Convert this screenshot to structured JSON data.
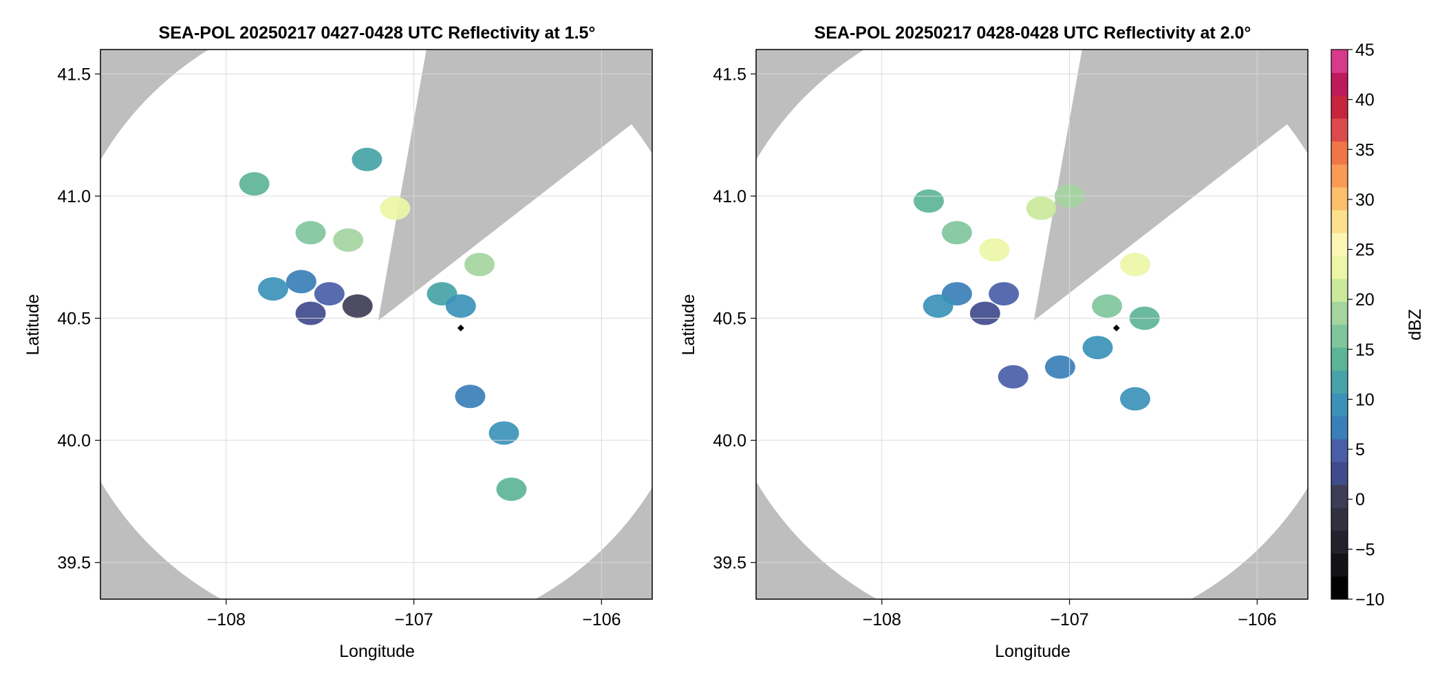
{
  "chart_data": [
    {
      "type": "heatmap",
      "title": "SEA-POL 20250217 0427-0428 UTC Reflectivity at 1.5°",
      "xlabel": "Longitude",
      "ylabel": "Latitude",
      "xlim": [
        -108.67,
        -105.73
      ],
      "ylim": [
        39.35,
        41.6
      ],
      "xticks": [
        -108,
        -107,
        -106
      ],
      "xtick_labels": [
        "−108",
        "−107",
        "−106"
      ],
      "yticks": [
        39.5,
        40.0,
        40.5,
        41.0,
        41.5
      ],
      "ytick_labels": [
        "39.5",
        "40.0",
        "40.5",
        "41.0",
        "41.5"
      ],
      "grid": true,
      "radar_center": [
        -107.19,
        40.49
      ],
      "coverage_radius_km": 145,
      "blocked_sector_azimuth_deg": [
        10,
        52
      ],
      "marker": {
        "lon": -106.75,
        "lat": 40.46
      },
      "echoes": [
        {
          "lon": -107.55,
          "lat": 40.85,
          "dbz": 18
        },
        {
          "lon": -107.35,
          "lat": 40.82,
          "dbz": 22
        },
        {
          "lon": -107.1,
          "lat": 40.95,
          "dbz": 25
        },
        {
          "lon": -107.6,
          "lat": 40.65,
          "dbz": 8
        },
        {
          "lon": -107.45,
          "lat": 40.6,
          "dbz": 6
        },
        {
          "lon": -107.75,
          "lat": 40.62,
          "dbz": 12
        },
        {
          "lon": -107.55,
          "lat": 40.52,
          "dbz": 3
        },
        {
          "lon": -107.3,
          "lat": 40.55,
          "dbz": 1
        },
        {
          "lon": -107.85,
          "lat": 41.05,
          "dbz": 16
        },
        {
          "lon": -107.25,
          "lat": 41.15,
          "dbz": 14
        },
        {
          "lon": -106.85,
          "lat": 40.6,
          "dbz": 13
        },
        {
          "lon": -106.65,
          "lat": 40.72,
          "dbz": 20
        },
        {
          "lon": -106.75,
          "lat": 40.55,
          "dbz": 12
        },
        {
          "lon": -106.7,
          "lat": 40.18,
          "dbz": 9
        },
        {
          "lon": -106.52,
          "lat": 40.03,
          "dbz": 11
        },
        {
          "lon": -106.48,
          "lat": 39.8,
          "dbz": 17
        }
      ]
    },
    {
      "type": "heatmap",
      "title": "SEA-POL 20250217 0428-0428 UTC Reflectivity at 2.0°",
      "xlabel": "Longitude",
      "ylabel": "Latitude",
      "xlim": [
        -108.67,
        -105.73
      ],
      "ylim": [
        39.35,
        41.6
      ],
      "xticks": [
        -108,
        -107,
        -106
      ],
      "xtick_labels": [
        "−108",
        "−107",
        "−106"
      ],
      "yticks": [
        39.5,
        40.0,
        40.5,
        41.0,
        41.5
      ],
      "ytick_labels": [
        "39.5",
        "40.0",
        "40.5",
        "41.0",
        "41.5"
      ],
      "grid": true,
      "radar_center": [
        -107.19,
        40.49
      ],
      "coverage_radius_km": 145,
      "blocked_sector_azimuth_deg": [
        10,
        52
      ],
      "marker": {
        "lon": -106.75,
        "lat": 40.46
      },
      "echoes": [
        {
          "lon": -107.4,
          "lat": 40.78,
          "dbz": 27
        },
        {
          "lon": -107.6,
          "lat": 40.85,
          "dbz": 18
        },
        {
          "lon": -107.15,
          "lat": 40.95,
          "dbz": 23
        },
        {
          "lon": -107.0,
          "lat": 41.0,
          "dbz": 22
        },
        {
          "lon": -107.6,
          "lat": 40.6,
          "dbz": 8
        },
        {
          "lon": -107.35,
          "lat": 40.6,
          "dbz": 6
        },
        {
          "lon": -107.7,
          "lat": 40.55,
          "dbz": 11
        },
        {
          "lon": -107.45,
          "lat": 40.52,
          "dbz": 4
        },
        {
          "lon": -107.75,
          "lat": 40.98,
          "dbz": 15
        },
        {
          "lon": -106.65,
          "lat": 40.72,
          "dbz": 27
        },
        {
          "lon": -106.8,
          "lat": 40.55,
          "dbz": 18
        },
        {
          "lon": -106.6,
          "lat": 40.5,
          "dbz": 15
        },
        {
          "lon": -106.85,
          "lat": 40.38,
          "dbz": 12
        },
        {
          "lon": -107.05,
          "lat": 40.3,
          "dbz": 8
        },
        {
          "lon": -107.3,
          "lat": 40.26,
          "dbz": 6
        },
        {
          "lon": -106.65,
          "lat": 40.17,
          "dbz": 12
        }
      ]
    }
  ],
  "colorbar": {
    "label": "dBZ",
    "min": -10,
    "max": 45,
    "step": 2.5,
    "ticks": [
      -10,
      -5,
      0,
      5,
      10,
      15,
      20,
      25,
      30,
      35,
      40,
      45
    ],
    "tick_labels": [
      "−10",
      "−5",
      "0",
      "5",
      "10",
      "15",
      "20",
      "25",
      "30",
      "35",
      "40",
      "45"
    ],
    "colors": [
      "#000000",
      "#121217",
      "#22212c",
      "#31303f",
      "#3e3d55",
      "#3f4b8c",
      "#4a5ea8",
      "#3a7fb8",
      "#3b92b8",
      "#46a3a7",
      "#5db497",
      "#80c69d",
      "#a5d59f",
      "#cae99c",
      "#ecf6a6",
      "#fdf6b4",
      "#fde08b",
      "#fcbf6c",
      "#f99a55",
      "#f07647",
      "#dc4a4c",
      "#c8243e",
      "#bd1a5b",
      "#d73a8a"
    ]
  },
  "colors": {
    "background": "#ffffff",
    "no_coverage": "#bebebe",
    "grid": "#d9d9d9",
    "marker": "#000000"
  }
}
